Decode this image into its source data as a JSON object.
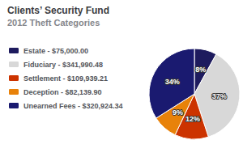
{
  "chart_data": {
    "type": "pie",
    "title": "Clients’ Security Fund",
    "subtitle": "2012 Theft Categories",
    "categories": [
      "Estate - $75,000.00",
      "Fiduciary - $341,990.48",
      "Settlement - $109,939.21",
      "Deception - $82,139.90",
      "Unearned Fees - $320,924.34"
    ],
    "values": [
      8,
      37,
      12,
      9,
      34
    ],
    "value_labels": [
      "8%",
      "37%",
      "12%",
      "9%",
      "34%"
    ],
    "colors": [
      "#1e1b5e",
      "#d8d8d8",
      "#cc3300",
      "#e8820a",
      "#1a1a70"
    ],
    "data_labels": true,
    "legend": "left"
  }
}
